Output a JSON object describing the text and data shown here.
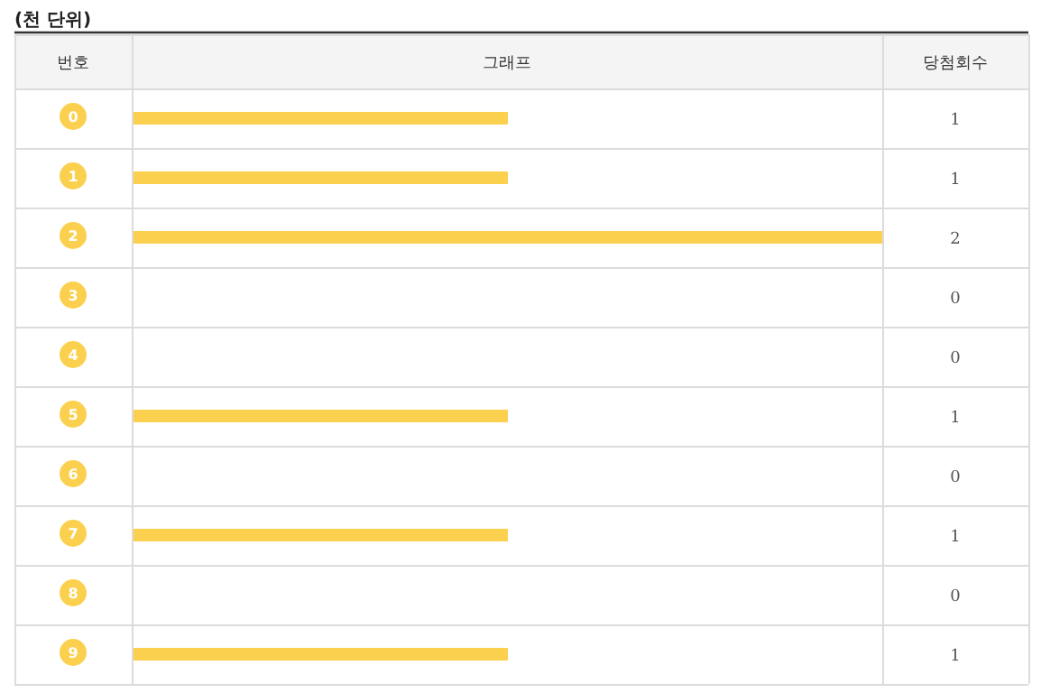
{
  "chart_data": {
    "type": "bar",
    "orientation": "horizontal",
    "title": "(천 단위)",
    "ylabel": "번호",
    "xlabel": "그래프",
    "annotations": [
      "당첨회수"
    ],
    "categories": [
      "0",
      "1",
      "2",
      "3",
      "4",
      "5",
      "6",
      "7",
      "8",
      "9"
    ],
    "values": [
      1,
      1,
      2,
      0,
      0,
      1,
      0,
      1,
      0,
      1
    ],
    "color": "#fcd04f",
    "xlim": [
      0,
      2
    ],
    "data_labels": true
  }
}
